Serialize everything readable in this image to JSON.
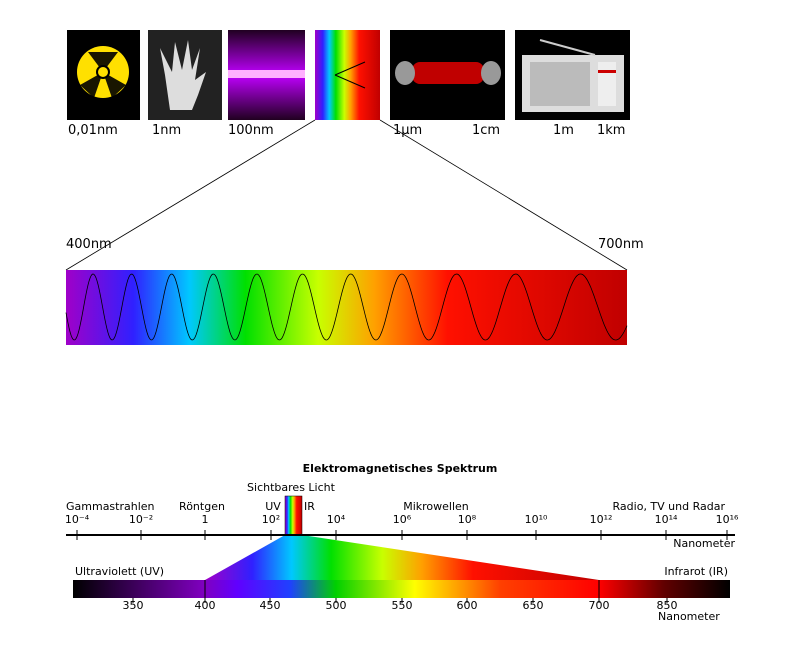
{
  "top": {
    "scale_labels": [
      "0,01nm",
      "1nm",
      "100nm",
      "1μm",
      "1cm",
      "1m",
      "1km"
    ],
    "start_label": "400nm",
    "end_label": "700nm"
  },
  "bottom": {
    "title": "Elektromagnetisches Spektrum",
    "visible_label": "Sichtbares Licht",
    "bands": [
      "Gammastrahlen",
      "Röntgen",
      "UV",
      "IR",
      "Mikrowellen",
      "Radio, TV und Radar"
    ],
    "ticks": [
      "10⁻⁴",
      "10⁻²",
      "1",
      "10²",
      "10⁴",
      "10⁶",
      "10⁸",
      "10¹⁰",
      "10¹²",
      "10¹⁴",
      "10¹⁶"
    ],
    "unit": "Nanometer",
    "left_label": "Ultraviolett (UV)",
    "right_label": "Infrarot (IR)",
    "detail_ticks": [
      350,
      400,
      450,
      500,
      550,
      600,
      650,
      700,
      850
    ],
    "detail_unit": "Nanometer"
  }
}
